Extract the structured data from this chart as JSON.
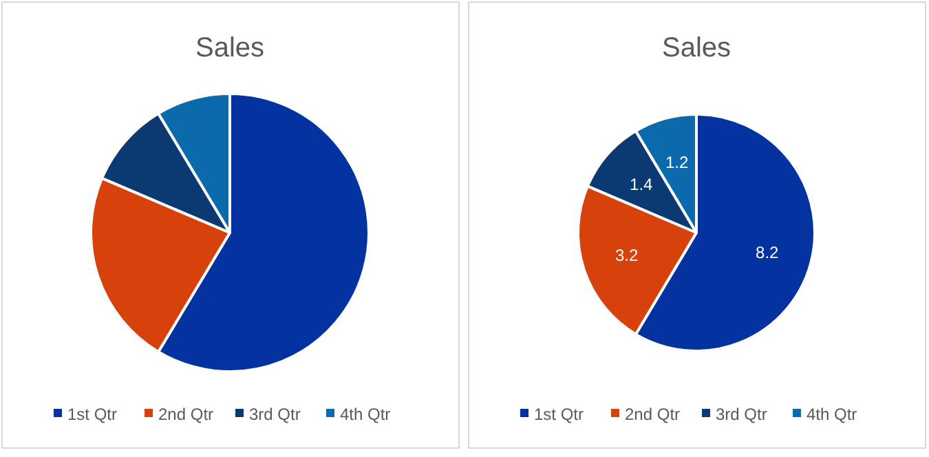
{
  "chart_data": [
    {
      "type": "pie",
      "title": "Sales",
      "categories": [
        "1st Qtr",
        "2nd Qtr",
        "3rd Qtr",
        "4th Qtr"
      ],
      "values": [
        58.6,
        22.8,
        10.0,
        8.6
      ],
      "colors": [
        "#0433a0",
        "#d6410c",
        "#0b3a73",
        "#0a6aab"
      ],
      "legend": "bottom"
    },
    {
      "type": "pie",
      "title": "Sales",
      "categories": [
        "1st Qtr",
        "2nd Qtr",
        "3rd Qtr",
        "4th Qtr"
      ],
      "values": [
        8.2,
        3.2,
        1.4,
        1.2
      ],
      "colors": [
        "#0433a0",
        "#d6410c",
        "#0b3a73",
        "#0a6aab"
      ],
      "legend": "bottom",
      "data_labels": true
    }
  ]
}
